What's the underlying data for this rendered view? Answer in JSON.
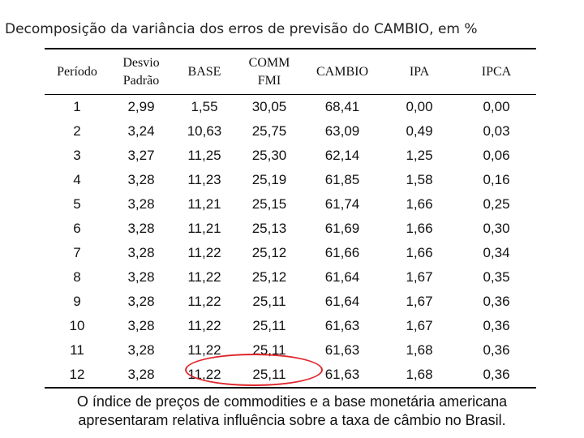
{
  "title": "Decomposição da variância dos erros de previsão do CAMBIO, em %",
  "table": {
    "headers": [
      [
        "Período"
      ],
      [
        "Desvio",
        "Padrão"
      ],
      [
        "BASE"
      ],
      [
        "COMM",
        "FMI"
      ],
      [
        "CAMBIO"
      ],
      [
        "IPA"
      ],
      [
        "IPCA"
      ]
    ],
    "rows": [
      [
        "1",
        "2,99",
        "1,55",
        "30,05",
        "68,41",
        "0,00",
        "0,00"
      ],
      [
        "2",
        "3,24",
        "10,63",
        "25,75",
        "63,09",
        "0,49",
        "0,03"
      ],
      [
        "3",
        "3,27",
        "11,25",
        "25,30",
        "62,14",
        "1,25",
        "0,06"
      ],
      [
        "4",
        "3,28",
        "11,23",
        "25,19",
        "61,85",
        "1,58",
        "0,16"
      ],
      [
        "5",
        "3,28",
        "11,21",
        "25,15",
        "61,74",
        "1,66",
        "0,25"
      ],
      [
        "6",
        "3,28",
        "11,21",
        "25,13",
        "61,69",
        "1,66",
        "0,30"
      ],
      [
        "7",
        "3,28",
        "11,22",
        "25,12",
        "61,66",
        "1,66",
        "0,34"
      ],
      [
        "8",
        "3,28",
        "11,22",
        "25,12",
        "61,64",
        "1,67",
        "0,35"
      ],
      [
        "9",
        "3,28",
        "11,22",
        "25,11",
        "61,64",
        "1,67",
        "0,36"
      ],
      [
        "10",
        "3,28",
        "11,22",
        "25,11",
        "61,63",
        "1,67",
        "0,36"
      ],
      [
        "11",
        "3,28",
        "11,22",
        "25,11",
        "61,63",
        "1,68",
        "0,36"
      ],
      [
        "12",
        "3,28",
        "11,22",
        "25,11",
        "61,63",
        "1,68",
        "0,36"
      ]
    ]
  },
  "highlight_color": "#e0252b",
  "caption": [
    "O índice de preços de commodities e a base monetária americana",
    "apresentaram relativa influência sobre a taxa de câmbio no Brasil."
  ]
}
